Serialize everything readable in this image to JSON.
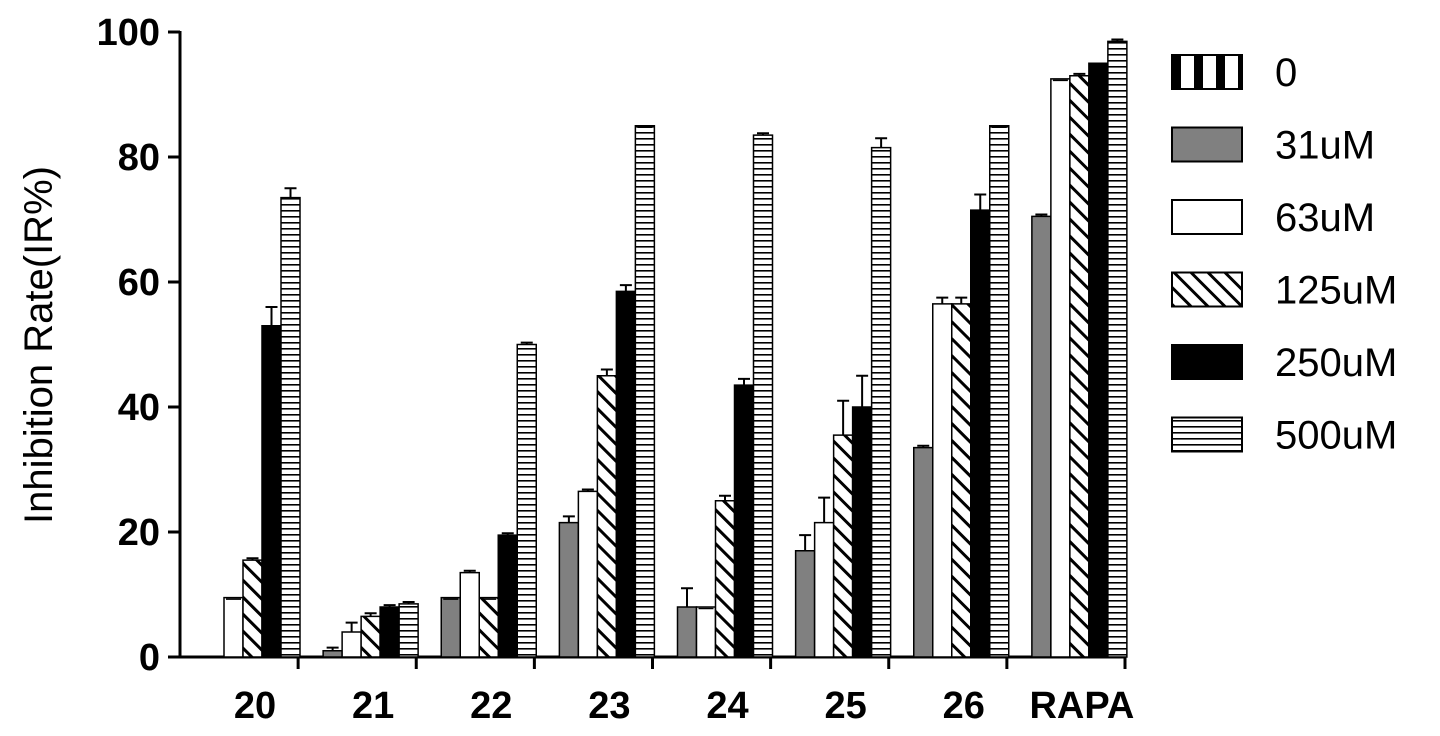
{
  "chart_data": {
    "type": "bar",
    "title": "",
    "xlabel": "",
    "ylabel": "Inhibition Rate(IR%)",
    "ylim": [
      0,
      100
    ],
    "yticks": [
      0,
      20,
      40,
      60,
      80,
      100
    ],
    "grid": false,
    "legend_position": "right",
    "categories": [
      "20",
      "21",
      "22",
      "23",
      "24",
      "25",
      "26",
      "RAPA"
    ],
    "series": [
      {
        "name": "0",
        "pattern": "vertical-stripes",
        "values": [
          0,
          0,
          0,
          0,
          0,
          0,
          0,
          0
        ],
        "errors": [
          0,
          0,
          0,
          0,
          0,
          0,
          0,
          0
        ]
      },
      {
        "name": "31uM",
        "pattern": "solid-gray",
        "values": [
          0,
          1,
          9.5,
          21.5,
          8,
          17,
          33.5,
          70.5
        ],
        "errors": [
          0,
          0.5,
          0,
          1,
          3,
          2.5,
          0.3,
          0.3
        ]
      },
      {
        "name": "63uM",
        "pattern": "white",
        "values": [
          9.5,
          4,
          13.5,
          26.5,
          8,
          21.5,
          56.5,
          92.5
        ],
        "errors": [
          0,
          1.5,
          0.3,
          0.3,
          0,
          4,
          1,
          0
        ]
      },
      {
        "name": "125uM",
        "pattern": "diagonal-hatch",
        "values": [
          15.5,
          6.5,
          9.5,
          45,
          25,
          35.5,
          56.5,
          93
        ],
        "errors": [
          0.3,
          0.5,
          0,
          1,
          0.8,
          5.5,
          1,
          0.3
        ]
      },
      {
        "name": "250uM",
        "pattern": "solid-black",
        "values": [
          53,
          8,
          19.5,
          58.5,
          43.5,
          40,
          71.5,
          95
        ],
        "errors": [
          3,
          0.3,
          0.3,
          1,
          1,
          5,
          2.5,
          0
        ]
      },
      {
        "name": "500uM",
        "pattern": "horizontal-stripes",
        "values": [
          73.5,
          8.5,
          50,
          85,
          83.5,
          81.5,
          85,
          98.5
        ],
        "errors": [
          1.5,
          0.3,
          0.3,
          0,
          0.3,
          1.5,
          0,
          0.3
        ]
      }
    ]
  }
}
